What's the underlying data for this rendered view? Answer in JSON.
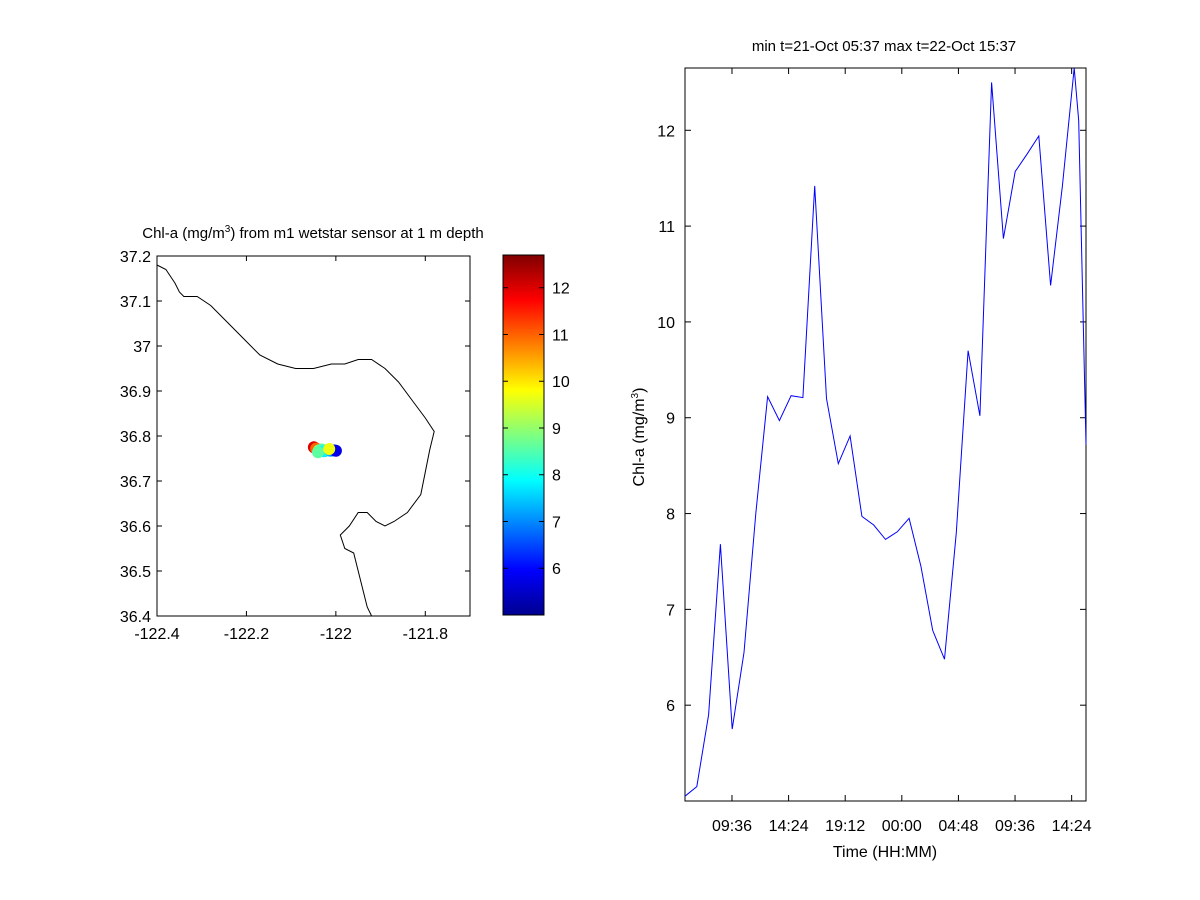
{
  "chart_data": [
    {
      "type": "scatter",
      "title_main": "Chl-a (mg/m",
      "title_sup": "3",
      "title_rest": ") from m1 wetstar sensor at 1 m depth",
      "xlim": [
        -122.4,
        -121.7
      ],
      "ylim": [
        36.4,
        37.2
      ],
      "x_ticks": [
        -122.4,
        -122.2,
        -122.0,
        -121.8
      ],
      "x_tick_labels": [
        "-122.4",
        "-122.2",
        "-122",
        "-121.8"
      ],
      "y_ticks": [
        36.4,
        36.5,
        36.6,
        36.7,
        36.8,
        36.9,
        37.0,
        37.1,
        37.2
      ],
      "y_tick_labels": [
        "36.4",
        "36.5",
        "36.6",
        "36.7",
        "36.8",
        "36.9",
        "37",
        "37.1",
        "37.2"
      ],
      "coastline": [
        [
          -122.4,
          37.18
        ],
        [
          -122.38,
          37.17
        ],
        [
          -122.36,
          37.14
        ],
        [
          -122.35,
          37.12
        ],
        [
          -122.34,
          37.11
        ],
        [
          -122.31,
          37.11
        ],
        [
          -122.28,
          37.09
        ],
        [
          -122.25,
          37.06
        ],
        [
          -122.22,
          37.03
        ],
        [
          -122.2,
          37.01
        ],
        [
          -122.17,
          36.98
        ],
        [
          -122.13,
          36.96
        ],
        [
          -122.09,
          36.95
        ],
        [
          -122.05,
          36.95
        ],
        [
          -122.01,
          36.96
        ],
        [
          -121.98,
          36.96
        ],
        [
          -121.95,
          36.97
        ],
        [
          -121.92,
          36.97
        ],
        [
          -121.89,
          36.95
        ],
        [
          -121.86,
          36.92
        ],
        [
          -121.83,
          36.88
        ],
        [
          -121.8,
          36.84
        ],
        [
          -121.78,
          36.81
        ],
        [
          -121.79,
          36.77
        ],
        [
          -121.8,
          36.72
        ],
        [
          -121.81,
          36.67
        ],
        [
          -121.84,
          36.63
        ],
        [
          -121.87,
          36.61
        ],
        [
          -121.89,
          36.6
        ],
        [
          -121.91,
          36.61
        ],
        [
          -121.93,
          36.63
        ],
        [
          -121.95,
          36.63
        ],
        [
          -121.97,
          36.6
        ],
        [
          -121.99,
          36.58
        ],
        [
          -121.98,
          36.55
        ],
        [
          -121.96,
          36.54
        ],
        [
          -121.95,
          36.5
        ],
        [
          -121.94,
          36.46
        ],
        [
          -121.93,
          36.42
        ],
        [
          -121.92,
          36.4
        ]
      ],
      "points": [
        {
          "lon": -122.049,
          "lat": 36.775,
          "value": 12.0
        },
        {
          "lon": -122.044,
          "lat": 36.772,
          "value": 11.0
        },
        {
          "lon": -122.038,
          "lat": 36.768,
          "value": 9.0
        },
        {
          "lon": -122.032,
          "lat": 36.77,
          "value": 8.5
        },
        {
          "lon": -122.026,
          "lat": 36.766,
          "value": 7.8
        },
        {
          "lon": -122.02,
          "lat": 36.769,
          "value": 8.0
        },
        {
          "lon": -122.012,
          "lat": 36.767,
          "value": 7.3
        },
        {
          "lon": -122.004,
          "lat": 36.768,
          "value": 6.4
        },
        {
          "lon": -122.0,
          "lat": 36.767,
          "value": 5.8
        },
        {
          "lon": -122.04,
          "lat": 36.764,
          "value": 8.6
        },
        {
          "lon": -122.015,
          "lat": 36.771,
          "value": 9.7
        }
      ],
      "colorbar": {
        "min": 5.0,
        "max": 12.7,
        "ticks": [
          6,
          7,
          8,
          9,
          10,
          11,
          12
        ],
        "tick_labels": [
          "6",
          "7",
          "8",
          "9",
          "10",
          "11",
          "12"
        ]
      }
    },
    {
      "type": "line",
      "title": "min t=21-Oct 05:37 max t=22-Oct 15:37",
      "xlabel": "Time (HH:MM)",
      "ylabel_main": "Chl-a (mg/m",
      "ylabel_sup": "3",
      "ylabel_rest": ")",
      "x_unit": "hours since 21-Oct 00:00",
      "xlim": [
        5.6167,
        39.6167
      ],
      "ylim": [
        5.0,
        12.65
      ],
      "x_ticks": [
        9.6,
        14.4,
        19.2,
        24.0,
        28.8,
        33.6,
        38.4
      ],
      "x_tick_labels": [
        "09:36",
        "14:24",
        "19:12",
        "00:00",
        "04:48",
        "09:36",
        "14:24"
      ],
      "y_ticks": [
        6,
        7,
        8,
        9,
        10,
        11,
        12
      ],
      "y_tick_labels": [
        "6",
        "7",
        "8",
        "9",
        "10",
        "11",
        "12"
      ],
      "line_color": "#0000ff",
      "series": [
        {
          "x": [
            5.6167,
            6.6167,
            7.6167,
            8.6167,
            9.6167,
            10.6167,
            11.6167,
            12.6167,
            13.6167,
            14.6167,
            15.6167,
            16.6167,
            17.6167,
            18.6167,
            19.6167,
            20.6167,
            21.6167,
            22.6167,
            23.6167,
            24.6167,
            25.6167,
            26.6167,
            27.6167,
            28.6167,
            29.6167,
            30.6167,
            31.6167,
            32.6167,
            33.6167,
            34.6167,
            35.6167,
            36.6167,
            37.6167,
            38.6167,
            39.0,
            39.6167
          ],
          "y": [
            5.05,
            5.15,
            5.9,
            7.68,
            5.75,
            6.55,
            8.0,
            9.22,
            8.97,
            9.23,
            9.21,
            11.42,
            9.2,
            8.52,
            8.81,
            7.97,
            7.88,
            7.73,
            7.81,
            7.95,
            7.45,
            6.78,
            6.48,
            7.8,
            9.7,
            9.02,
            12.5,
            10.87,
            11.57,
            11.75,
            11.94,
            10.38,
            11.42,
            12.65,
            12.1,
            8.72
          ]
        }
      ]
    }
  ]
}
